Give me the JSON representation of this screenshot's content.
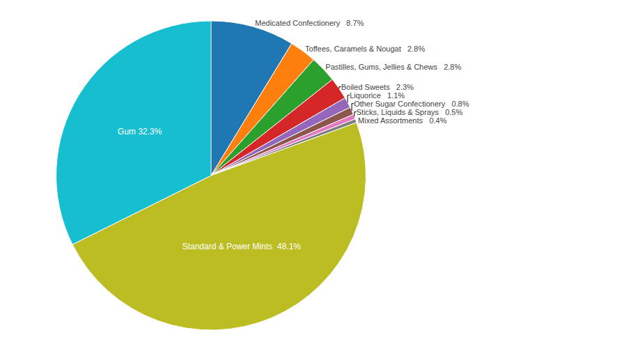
{
  "chart_data": {
    "type": "pie",
    "categories": [
      "Medicated Confectionery",
      "Toffees, Caramels & Nougat",
      "Pastilles, Gums, Jellies & Chews",
      "Boiled Sweets",
      "Liquorice",
      "Other Sugar Confectionery",
      "Sticks, Liquids & Sprays",
      "Mixed Assortments",
      "Standard & Power Mints",
      "Gum"
    ],
    "values": [
      8.7,
      2.8,
      2.8,
      2.3,
      1.1,
      0.8,
      0.5,
      0.4,
      48.1,
      32.3
    ],
    "value_labels": [
      "Medicated Confectionery   8.7%",
      "Toffees, Caramels & Nougat   2.8%",
      "Pastilles, Gums, Jellies & Chews   2.8%",
      "Boiled Sweets   2.3%",
      "Liquorice   1.1%",
      "Other Sugar Confectionery   0.8%",
      "Sticks, Liquids & Sprays   0.5%",
      "Mixed Assortments   0.4%",
      "Standard & Power Mints  48.1%",
      "Gum 32.3%"
    ],
    "data_labels": true
  }
}
